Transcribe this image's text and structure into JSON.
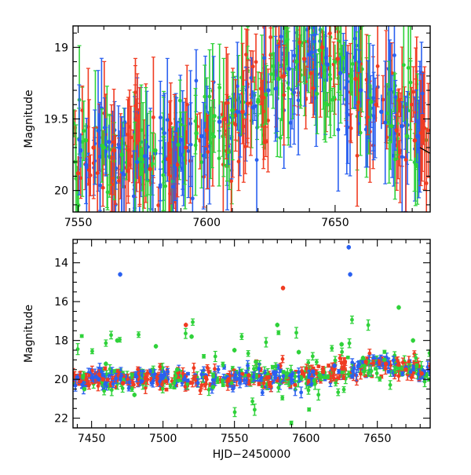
{
  "chart_data": [
    {
      "type": "scatter",
      "xlabel": "",
      "ylabel": "Magnitude",
      "xlim": [
        7548,
        7687
      ],
      "ylim": [
        20.15,
        18.85
      ],
      "y_inverted": true,
      "xticks": [
        {
          "value": 7550,
          "label": "7550"
        },
        {
          "value": 7600,
          "label": "7600"
        },
        {
          "value": 7650,
          "label": "7650"
        }
      ],
      "yticks": [
        {
          "value": 19,
          "label": "19"
        },
        {
          "value": 19.5,
          "label": "19.5"
        },
        {
          "value": 20,
          "label": "20"
        }
      ],
      "series": [
        {
          "color": "#2a60f0",
          "x": [
            7551,
            7558,
            7562,
            7566,
            7573,
            7576,
            7580,
            7584,
            7590,
            7598,
            7605,
            7612,
            7618,
            7624,
            7632,
            7640,
            7647,
            7652,
            7660,
            7668,
            7676,
            7682
          ],
          "y": [
            19.72,
            19.58,
            19.66,
            19.7,
            19.8,
            19.76,
            19.74,
            19.78,
            19.75,
            19.62,
            19.52,
            19.45,
            19.42,
            19.3,
            19.15,
            19.05,
            19.12,
            19.18,
            19.3,
            19.45,
            19.55,
            19.62
          ]
        },
        {
          "color": "#2fd23a",
          "x": [
            7549,
            7553,
            7560,
            7567,
            7574,
            7580,
            7589,
            7596,
            7603,
            7610,
            7620,
            7628,
            7635,
            7644,
            7650,
            7656,
            7664,
            7672,
            7678
          ],
          "y": [
            19.8,
            19.65,
            19.7,
            19.75,
            19.78,
            19.72,
            19.68,
            19.6,
            19.48,
            19.44,
            19.38,
            19.22,
            19.1,
            19.02,
            19.1,
            19.2,
            19.38,
            19.55,
            19.62
          ]
        },
        {
          "color": "#f03c22",
          "x": [
            7550,
            7556,
            7564,
            7570,
            7578,
            7585,
            7592,
            7600,
            7607,
            7614,
            7622,
            7630,
            7638,
            7645,
            7651,
            7658,
            7666,
            7674,
            7681
          ],
          "y": [
            19.88,
            19.7,
            19.72,
            19.82,
            19.85,
            19.78,
            19.7,
            19.58,
            19.5,
            19.45,
            19.35,
            19.2,
            19.08,
            19.0,
            19.08,
            19.22,
            19.4,
            19.58,
            19.65
          ]
        }
      ],
      "model_curve_color": "#000000"
    },
    {
      "type": "scatter",
      "xlabel": "HJD−2450000",
      "ylabel": "Magnitude",
      "xlim": [
        7437,
        7687
      ],
      "ylim": [
        22.5,
        12.8
      ],
      "y_inverted": true,
      "xticks": [
        {
          "value": 7450,
          "label": "7450"
        },
        {
          "value": 7500,
          "label": "7500"
        },
        {
          "value": 7550,
          "label": "7550"
        },
        {
          "value": 7600,
          "label": "7600"
        },
        {
          "value": 7650,
          "label": "7650"
        }
      ],
      "yticks": [
        {
          "value": 14,
          "label": "14"
        },
        {
          "value": 16,
          "label": "16"
        },
        {
          "value": 18,
          "label": "18"
        },
        {
          "value": 20,
          "label": "20"
        },
        {
          "value": 22,
          "label": "22"
        }
      ],
      "series": [
        {
          "color": "#2a60f0",
          "x": [
            7440,
            7455,
            7470,
            7485,
            7500,
            7515,
            7530,
            7545,
            7560,
            7575,
            7590,
            7605,
            7620,
            7630,
            7631,
            7640,
            7655,
            7670,
            7682
          ],
          "y": [
            19.9,
            20.0,
            14.6,
            20.1,
            19.9,
            20.0,
            19.8,
            19.9,
            19.8,
            19.9,
            19.8,
            19.6,
            19.3,
            13.2,
            14.6,
            19.1,
            19.2,
            19.4,
            19.6
          ]
        },
        {
          "color": "#2fd23a",
          "x": [
            7445,
            7460,
            7468,
            7480,
            7495,
            7510,
            7520,
            7535,
            7550,
            7565,
            7580,
            7595,
            7610,
            7625,
            7640,
            7655,
            7665,
            7675
          ],
          "y": [
            20.5,
            19.2,
            18.0,
            20.8,
            18.3,
            19.5,
            17.8,
            20.4,
            18.5,
            19.1,
            17.2,
            18.6,
            19.8,
            18.2,
            18.9,
            19.0,
            16.3,
            18.0
          ]
        },
        {
          "color": "#f03c22",
          "x": [
            7442,
            7458,
            7472,
            7488,
            7502,
            7516,
            7530,
            7546,
            7560,
            7574,
            7584,
            7598,
            7612,
            7626,
            7642,
            7656,
            7670,
            7681
          ],
          "y": [
            20.1,
            20.0,
            20.2,
            19.9,
            20.1,
            17.2,
            19.9,
            20.0,
            19.8,
            19.9,
            15.3,
            19.7,
            19.6,
            19.4,
            19.1,
            19.2,
            19.5,
            19.7
          ]
        }
      ]
    }
  ]
}
